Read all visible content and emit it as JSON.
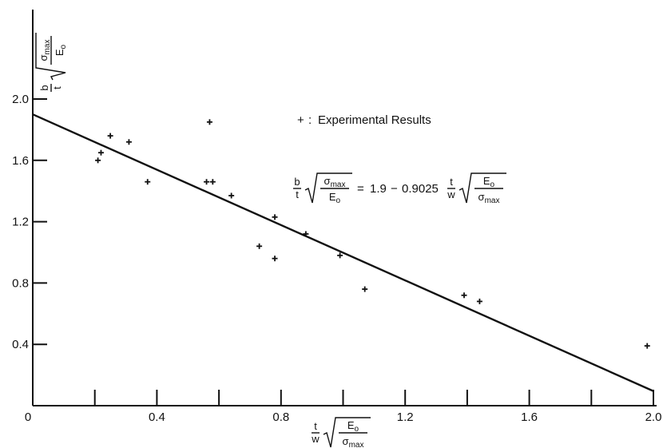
{
  "chart_data": {
    "type": "scatter",
    "title": "",
    "xlabel_parts": {
      "num": "t",
      "den": "w",
      "rad_num": "E",
      "rad_num_sub": "o",
      "rad_den": "σ",
      "rad_den_sub": "max"
    },
    "ylabel_parts": {
      "num": "b",
      "den": "t",
      "rad_num": "σ",
      "rad_num_sub": "max",
      "rad_den": "E",
      "rad_den_sub": "o"
    },
    "xlim": [
      0,
      2.0
    ],
    "ylim": [
      0,
      2.3
    ],
    "x_ticks": [
      0,
      0.4,
      0.8,
      1.2,
      1.6,
      2.0
    ],
    "x_tick_labels": [
      "0",
      "0.4",
      "0.8",
      "1.2",
      "1.6",
      "2.0"
    ],
    "x_minor_ticks": [
      0.2,
      0.6,
      1.0,
      1.4,
      1.8
    ],
    "y_ticks": [
      0.4,
      0.8,
      1.2,
      1.6,
      2.0
    ],
    "y_tick_labels": [
      "0.4",
      "0.8",
      "1.2",
      "1.6",
      "2.0"
    ],
    "origin_label": "0",
    "grid": false,
    "legend": {
      "position": "top-right",
      "marker": "+",
      "separator": ":",
      "label": "Experimental Results"
    },
    "fit_line": {
      "intercept": 1.9,
      "slope": -0.9025,
      "equation": {
        "lhs_num": "b",
        "lhs_den": "t",
        "lhs_rad_num": "σ",
        "lhs_rad_num_sub": "max",
        "lhs_rad_den": "E",
        "lhs_rad_den_sub": "o",
        "equals": "=",
        "constant": "1.9",
        "minus": "−",
        "coefficient": "0.9025",
        "rhs_num": "t",
        "rhs_den": "w",
        "rhs_rad_num": "E",
        "rhs_rad_num_sub": "o",
        "rhs_rad_den": "σ",
        "rhs_rad_den_sub": "max"
      }
    },
    "series": [
      {
        "marker": "+",
        "points": [
          [
            0.21,
            1.6
          ],
          [
            0.22,
            1.65
          ],
          [
            0.25,
            1.76
          ],
          [
            0.31,
            1.72
          ],
          [
            0.37,
            1.46
          ],
          [
            0.56,
            1.46
          ],
          [
            0.57,
            1.85
          ],
          [
            0.58,
            1.46
          ],
          [
            0.64,
            1.37
          ],
          [
            0.73,
            1.04
          ],
          [
            0.78,
            1.23
          ],
          [
            0.78,
            0.96
          ],
          [
            0.88,
            1.12
          ],
          [
            0.99,
            0.98
          ],
          [
            1.07,
            0.76
          ],
          [
            1.39,
            0.72
          ],
          [
            1.44,
            0.68
          ],
          [
            1.98,
            0.39
          ]
        ]
      }
    ]
  }
}
